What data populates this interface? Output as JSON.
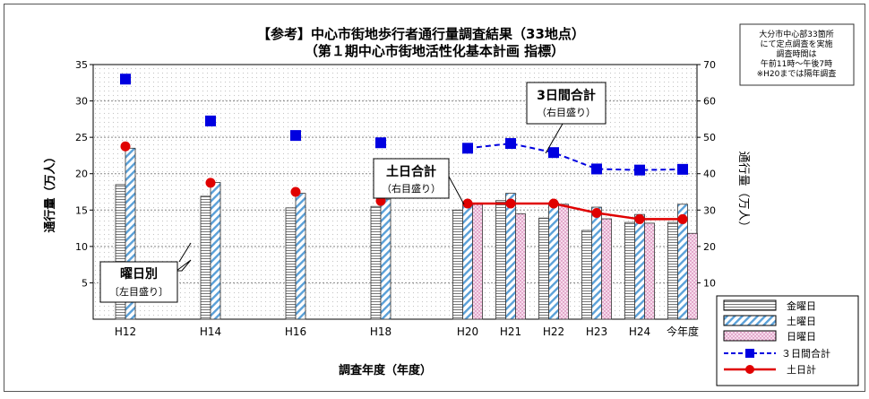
{
  "title_line1": "【参考】中心市街地歩行者通行量調査結果（33地点）",
  "title_line2": "（第１期中心市街地活性化基本計画 指標）",
  "note_lines": [
    "大分市中心部33箇所",
    "にて定点調査を実施",
    "調査時間は",
    "午前11時～午後7時",
    "※H20までは隔年調査"
  ],
  "callout_weekday": {
    "title": "曜日別",
    "sub": "〔左目盛り〕"
  },
  "callout_weekend": {
    "title": "土日合計",
    "sub": "（右目盛り）"
  },
  "callout_3day": {
    "title": "3日間合計",
    "sub": "（右目盛り）"
  },
  "chart_data": {
    "type": "bar",
    "categories": [
      "H12",
      "H14",
      "H16",
      "H18",
      "H20",
      "H21",
      "H22",
      "H23",
      "H24",
      "今年度"
    ],
    "xlabel": "調査年度（年度）",
    "ylabel": "通行量（万人）",
    "y2label": "通行量（万人）",
    "ylim": [
      0,
      35
    ],
    "y2lim": [
      0,
      70
    ],
    "yticks": [
      5,
      10,
      15,
      20,
      25,
      30,
      35
    ],
    "y2ticks": [
      10,
      20,
      30,
      40,
      50,
      60,
      70
    ],
    "series": [
      {
        "name": "金曜日",
        "kind": "bar",
        "axis": "left",
        "values": [
          18.5,
          16.9,
          15.3,
          15.5,
          15.0,
          16.3,
          13.9,
          12.2,
          13.3,
          13.3
        ],
        "color": "#9a9a9a"
      },
      {
        "name": "土曜日",
        "kind": "bar",
        "axis": "left",
        "values": [
          23.5,
          18.8,
          17.3,
          16.5,
          16.0,
          17.3,
          16.0,
          15.4,
          14.4,
          15.8
        ],
        "color": "#5aa0d8"
      },
      {
        "name": "日曜日",
        "kind": "bar",
        "axis": "left",
        "values": [
          null,
          null,
          null,
          null,
          15.8,
          14.5,
          15.8,
          13.8,
          13.2,
          11.8
        ],
        "color": "#d58ab8"
      },
      {
        "name": "３日間合計",
        "kind": "line",
        "axis": "right",
        "values": [
          66,
          54.5,
          50.5,
          48.5,
          47,
          48.3,
          45.8,
          41.3,
          41,
          41.2
        ],
        "color": "#0000e0"
      },
      {
        "name": "土日計",
        "kind": "line",
        "axis": "right",
        "values": [
          47.5,
          37.5,
          35,
          32.5,
          31.8,
          31.8,
          31.8,
          29.2,
          27.5,
          27.5
        ],
        "color": "#e00000"
      }
    ],
    "grid": true,
    "legend": "bottom-right"
  }
}
